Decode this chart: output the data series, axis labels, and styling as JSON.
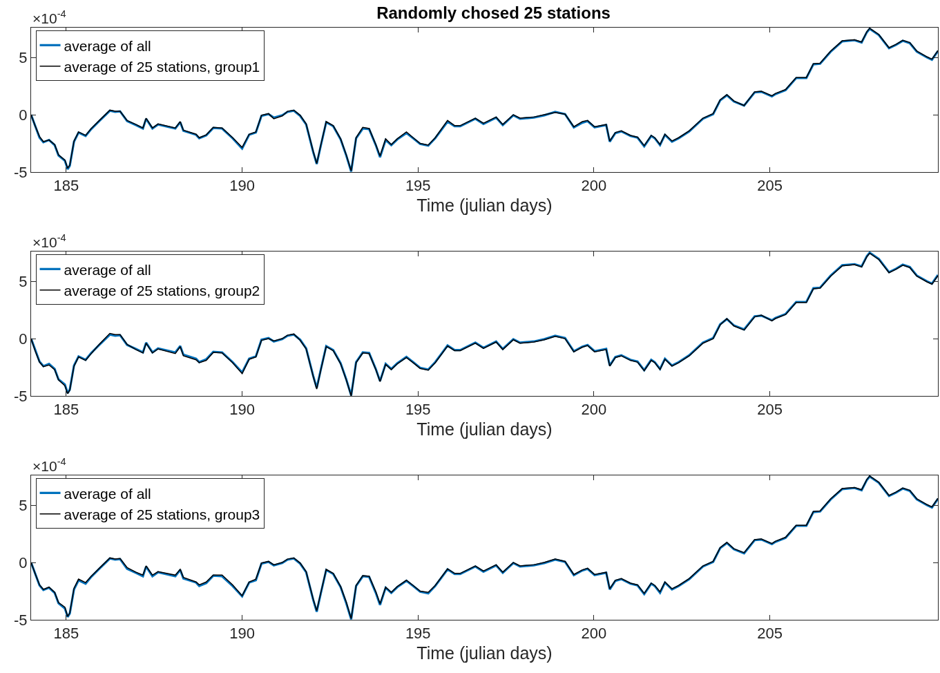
{
  "chart_data": [
    {
      "type": "line",
      "title": "Randomly chosed 25 stations",
      "xlabel": "Time (julian days)",
      "annotations": [
        "×10$^{-4}$"
      ],
      "legend": "top left",
      "grid": false,
      "x": [
        184.0,
        184.12,
        184.24,
        184.35,
        184.51,
        184.67,
        184.78,
        184.96,
        185.04,
        185.1,
        185.22,
        185.35,
        185.55,
        185.71,
        185.94,
        186.24,
        186.39,
        186.53,
        186.73,
        186.98,
        187.18,
        187.27,
        187.45,
        187.61,
        188.1,
        188.24,
        188.33,
        188.69,
        188.78,
        188.98,
        189.18,
        189.43,
        189.73,
        190.0,
        190.2,
        190.39,
        190.55,
        190.75,
        190.9,
        191.14,
        191.29,
        191.47,
        191.65,
        191.82,
        192.02,
        192.12,
        192.24,
        192.39,
        192.59,
        192.8,
        192.96,
        193.1,
        193.24,
        193.43,
        193.61,
        193.8,
        193.92,
        194.08,
        194.24,
        194.41,
        194.67,
        194.86,
        195.06,
        195.29,
        195.49,
        195.84,
        196.04,
        196.2,
        196.63,
        196.86,
        197.22,
        197.41,
        197.71,
        197.9,
        198.29,
        198.59,
        198.9,
        199.18,
        199.43,
        199.67,
        199.82,
        200.02,
        200.35,
        200.45,
        200.61,
        200.78,
        201.04,
        201.24,
        201.43,
        201.63,
        201.73,
        201.88,
        202.02,
        202.22,
        202.41,
        202.71,
        203.1,
        203.39,
        203.59,
        203.78,
        203.98,
        204.27,
        204.57,
        204.76,
        205.06,
        205.16,
        205.45,
        205.75,
        206.04,
        206.24,
        206.43,
        206.73,
        207.06,
        207.41,
        207.61,
        207.76,
        207.84,
        208.1,
        208.39,
        208.59,
        208.78,
        208.98,
        209.18,
        209.47,
        209.61,
        209.78
      ],
      "xlim": [
        184,
        209.78
      ],
      "xticks": [
        185,
        190,
        195,
        200,
        205
      ],
      "ylim": [
        -5,
        7.6
      ],
      "yticks": [
        -5,
        0,
        5
      ],
      "series": [
        {
          "name": "average of all",
          "color": "#0072bd",
          "values": [
            0,
            -1.0,
            -2.0,
            -2.4,
            -2.2,
            -2.65,
            -3.55,
            -4.0,
            -4.75,
            -4.45,
            -2.35,
            -1.55,
            -1.85,
            -1.25,
            -0.55,
            0.35,
            0.25,
            0.3,
            -0.55,
            -0.9,
            -1.2,
            -0.35,
            -1.2,
            -0.85,
            -1.2,
            -0.65,
            -1.4,
            -1.75,
            -2.05,
            -1.8,
            -1.15,
            -1.2,
            -2.05,
            -2.95,
            -1.75,
            -1.55,
            -0.1,
            0.05,
            -0.25,
            -0.05,
            0.25,
            0.35,
            -0.1,
            -0.85,
            -3.25,
            -4.3,
            -2.65,
            -0.65,
            -1.0,
            -2.15,
            -3.55,
            -4.95,
            -2.05,
            -1.2,
            -1.25,
            -2.65,
            -3.7,
            -2.2,
            -2.65,
            -2.15,
            -1.6,
            -2.05,
            -2.55,
            -2.7,
            -2.05,
            -0.6,
            -1.0,
            -1.0,
            -0.35,
            -0.8,
            -0.25,
            -0.9,
            -0.05,
            -0.35,
            -0.25,
            -0.05,
            0.25,
            0.05,
            -1.1,
            -0.7,
            -0.55,
            -1.1,
            -0.9,
            -2.35,
            -1.6,
            -1.45,
            -1.85,
            -2.0,
            -2.75,
            -1.85,
            -2.05,
            -2.65,
            -1.75,
            -2.35,
            -2.05,
            -1.45,
            -0.35,
            0.05,
            1.25,
            1.7,
            1.15,
            0.8,
            1.95,
            2.0,
            1.6,
            1.8,
            2.15,
            3.2,
            3.2,
            4.4,
            4.45,
            5.5,
            6.4,
            6.5,
            6.3,
            7.2,
            7.5,
            6.95,
            5.8,
            6.1,
            6.45,
            6.25,
            5.5,
            5.0,
            4.8,
            5.55
          ]
        },
        {
          "name": "average of 25 stations, group1",
          "color": "#000000",
          "values": [
            0,
            -1.0,
            -1.9,
            -2.35,
            -2.2,
            -2.6,
            -3.5,
            -3.95,
            -4.65,
            -4.4,
            -2.3,
            -1.5,
            -1.8,
            -1.2,
            -0.5,
            0.4,
            0.3,
            0.3,
            -0.5,
            -0.85,
            -1.15,
            -0.3,
            -1.15,
            -0.8,
            -1.15,
            -0.6,
            -1.35,
            -1.7,
            -2.0,
            -1.75,
            -1.1,
            -1.15,
            -2.0,
            -2.85,
            -1.7,
            -1.5,
            -0.05,
            0.1,
            -0.35,
            -0.1,
            0.3,
            0.4,
            -0.05,
            -0.8,
            -3.2,
            -4.25,
            -2.6,
            -0.6,
            -0.95,
            -2.1,
            -3.5,
            -4.9,
            -2.0,
            -1.1,
            -1.2,
            -2.6,
            -3.6,
            -2.1,
            -2.6,
            -2.1,
            -1.5,
            -2.0,
            -2.5,
            -2.65,
            -2.0,
            -0.5,
            -0.95,
            -0.95,
            -0.3,
            -0.75,
            -0.2,
            -0.85,
            0.0,
            -0.3,
            -0.2,
            0.0,
            0.2,
            0.05,
            -1.05,
            -0.6,
            -0.5,
            -1.05,
            -0.85,
            -2.3,
            -1.55,
            -1.4,
            -1.8,
            -1.95,
            -2.7,
            -1.8,
            -2.0,
            -2.6,
            -1.7,
            -2.3,
            -2.0,
            -1.4,
            -0.3,
            0.1,
            1.3,
            1.75,
            1.2,
            0.8,
            2.0,
            2.05,
            1.65,
            1.85,
            2.2,
            3.25,
            3.25,
            4.45,
            4.5,
            5.55,
            6.45,
            6.55,
            6.35,
            7.25,
            7.55,
            7.0,
            5.85,
            6.15,
            6.5,
            6.3,
            5.55,
            5.05,
            4.85,
            5.6
          ]
        }
      ]
    },
    {
      "type": "line",
      "xlabel": "Time (julian days)",
      "annotations": [
        "×10$^{-4}$"
      ],
      "legend": "top left",
      "grid": false,
      "x": [
        184.0,
        184.12,
        184.24,
        184.35,
        184.51,
        184.67,
        184.78,
        184.96,
        185.04,
        185.1,
        185.22,
        185.35,
        185.55,
        185.71,
        185.94,
        186.24,
        186.39,
        186.53,
        186.73,
        186.98,
        187.18,
        187.27,
        187.45,
        187.61,
        188.1,
        188.24,
        188.33,
        188.69,
        188.78,
        188.98,
        189.18,
        189.43,
        189.73,
        190.0,
        190.2,
        190.39,
        190.55,
        190.75,
        190.9,
        191.14,
        191.29,
        191.47,
        191.65,
        191.82,
        192.02,
        192.12,
        192.24,
        192.39,
        192.59,
        192.8,
        192.96,
        193.1,
        193.24,
        193.43,
        193.61,
        193.8,
        193.92,
        194.08,
        194.24,
        194.41,
        194.67,
        194.86,
        195.06,
        195.29,
        195.49,
        195.84,
        196.04,
        196.2,
        196.63,
        196.86,
        197.22,
        197.41,
        197.71,
        197.9,
        198.29,
        198.59,
        198.9,
        199.18,
        199.43,
        199.67,
        199.82,
        200.02,
        200.35,
        200.45,
        200.61,
        200.78,
        201.04,
        201.24,
        201.43,
        201.63,
        201.73,
        201.88,
        202.02,
        202.22,
        202.41,
        202.71,
        203.1,
        203.39,
        203.59,
        203.78,
        203.98,
        204.27,
        204.57,
        204.76,
        205.06,
        205.16,
        205.45,
        205.75,
        206.04,
        206.24,
        206.43,
        206.73,
        207.06,
        207.41,
        207.61,
        207.76,
        207.84,
        208.1,
        208.39,
        208.59,
        208.78,
        208.98,
        209.18,
        209.47,
        209.61,
        209.78
      ],
      "xlim": [
        184,
        209.78
      ],
      "xticks": [
        185,
        190,
        195,
        200,
        205
      ],
      "ylim": [
        -5,
        7.6
      ],
      "yticks": [
        -5,
        0,
        5
      ],
      "series": [
        {
          "name": "average of all",
          "color": "#0072bd",
          "values": [
            0,
            -1.0,
            -2.0,
            -2.4,
            -2.2,
            -2.65,
            -3.55,
            -4.0,
            -4.75,
            -4.45,
            -2.35,
            -1.55,
            -1.85,
            -1.25,
            -0.55,
            0.35,
            0.25,
            0.3,
            -0.55,
            -0.9,
            -1.2,
            -0.35,
            -1.2,
            -0.85,
            -1.2,
            -0.65,
            -1.4,
            -1.75,
            -2.05,
            -1.8,
            -1.15,
            -1.2,
            -2.05,
            -2.95,
            -1.75,
            -1.55,
            -0.1,
            0.05,
            -0.25,
            -0.05,
            0.25,
            0.35,
            -0.1,
            -0.85,
            -3.25,
            -4.3,
            -2.65,
            -0.65,
            -1.0,
            -2.15,
            -3.55,
            -4.95,
            -2.05,
            -1.2,
            -1.25,
            -2.65,
            -3.7,
            -2.2,
            -2.65,
            -2.15,
            -1.6,
            -2.05,
            -2.55,
            -2.7,
            -2.05,
            -0.6,
            -1.0,
            -1.0,
            -0.35,
            -0.8,
            -0.25,
            -0.9,
            -0.05,
            -0.35,
            -0.25,
            -0.05,
            0.25,
            0.05,
            -1.1,
            -0.7,
            -0.55,
            -1.1,
            -0.9,
            -2.35,
            -1.6,
            -1.45,
            -1.85,
            -2.0,
            -2.75,
            -1.85,
            -2.05,
            -2.65,
            -1.75,
            -2.35,
            -2.05,
            -1.45,
            -0.35,
            0.05,
            1.25,
            1.7,
            1.15,
            0.8,
            1.95,
            2.0,
            1.6,
            1.8,
            2.15,
            3.2,
            3.2,
            4.4,
            4.45,
            5.5,
            6.4,
            6.5,
            6.3,
            7.2,
            7.5,
            6.95,
            5.8,
            6.1,
            6.45,
            6.25,
            5.5,
            5.0,
            4.8,
            5.55
          ]
        },
        {
          "name": "average of 25 stations, group2",
          "color": "#000000",
          "values": [
            0,
            -1.1,
            -2.05,
            -2.45,
            -2.3,
            -2.7,
            -3.6,
            -4.1,
            -4.8,
            -4.5,
            -2.4,
            -1.6,
            -1.9,
            -1.3,
            -0.5,
            0.45,
            0.35,
            0.35,
            -0.5,
            -0.95,
            -1.25,
            -0.4,
            -1.25,
            -0.9,
            -1.3,
            -0.7,
            -1.5,
            -1.85,
            -2.1,
            -1.9,
            -1.2,
            -1.25,
            -2.1,
            -3.05,
            -1.8,
            -1.6,
            -0.15,
            0.0,
            -0.2,
            0.0,
            0.3,
            0.4,
            -0.15,
            -0.9,
            -3.3,
            -4.4,
            -2.7,
            -0.7,
            -1.05,
            -2.2,
            -3.6,
            -5.0,
            -2.1,
            -1.25,
            -1.3,
            -2.7,
            -3.75,
            -2.25,
            -2.7,
            -2.2,
            -1.65,
            -2.1,
            -2.6,
            -2.75,
            -2.1,
            -0.65,
            -1.05,
            -1.05,
            -0.4,
            -0.85,
            -0.3,
            -0.95,
            -0.1,
            -0.4,
            -0.3,
            -0.1,
            0.2,
            0.0,
            -1.15,
            -0.75,
            -0.6,
            -1.15,
            -0.95,
            -2.4,
            -1.65,
            -1.5,
            -1.9,
            -2.05,
            -2.8,
            -1.9,
            -2.1,
            -2.7,
            -1.8,
            -2.4,
            -2.1,
            -1.5,
            -0.4,
            0.0,
            1.2,
            1.75,
            1.1,
            0.75,
            1.9,
            2.05,
            1.55,
            1.75,
            2.1,
            3.15,
            3.15,
            4.35,
            4.4,
            5.45,
            6.35,
            6.45,
            6.25,
            7.15,
            7.45,
            6.9,
            5.75,
            6.05,
            6.4,
            6.2,
            5.45,
            4.95,
            4.75,
            5.5
          ]
        }
      ]
    },
    {
      "type": "line",
      "xlabel": "Time (julian days)",
      "annotations": [
        "×10$^{-4}$"
      ],
      "legend": "top left",
      "grid": false,
      "x": [
        184.0,
        184.12,
        184.24,
        184.35,
        184.51,
        184.67,
        184.78,
        184.96,
        185.04,
        185.1,
        185.22,
        185.35,
        185.55,
        185.71,
        185.94,
        186.24,
        186.39,
        186.53,
        186.73,
        186.98,
        187.18,
        187.27,
        187.45,
        187.61,
        188.1,
        188.24,
        188.33,
        188.69,
        188.78,
        188.98,
        189.18,
        189.43,
        189.73,
        190.0,
        190.2,
        190.39,
        190.55,
        190.75,
        190.9,
        191.14,
        191.29,
        191.47,
        191.65,
        191.82,
        192.02,
        192.12,
        192.24,
        192.39,
        192.59,
        192.8,
        192.96,
        193.1,
        193.24,
        193.43,
        193.61,
        193.8,
        193.92,
        194.08,
        194.24,
        194.41,
        194.67,
        194.86,
        195.06,
        195.29,
        195.49,
        195.84,
        196.04,
        196.2,
        196.63,
        196.86,
        197.22,
        197.41,
        197.71,
        197.9,
        198.29,
        198.59,
        198.9,
        199.18,
        199.43,
        199.67,
        199.82,
        200.02,
        200.35,
        200.45,
        200.61,
        200.78,
        201.04,
        201.24,
        201.43,
        201.63,
        201.73,
        201.88,
        202.02,
        202.22,
        202.41,
        202.71,
        203.1,
        203.39,
        203.59,
        203.78,
        203.98,
        204.27,
        204.57,
        204.76,
        205.06,
        205.16,
        205.45,
        205.75,
        206.04,
        206.24,
        206.43,
        206.73,
        207.06,
        207.41,
        207.61,
        207.76,
        207.84,
        208.1,
        208.39,
        208.59,
        208.78,
        208.98,
        209.18,
        209.47,
        209.61,
        209.78
      ],
      "xlim": [
        184,
        209.78
      ],
      "xticks": [
        185,
        190,
        195,
        200,
        205
      ],
      "ylim": [
        -5,
        7.6
      ],
      "yticks": [
        -5,
        0,
        5
      ],
      "series": [
        {
          "name": "average of all",
          "color": "#0072bd",
          "values": [
            0,
            -1.0,
            -2.0,
            -2.4,
            -2.2,
            -2.65,
            -3.55,
            -4.0,
            -4.75,
            -4.45,
            -2.35,
            -1.55,
            -1.85,
            -1.25,
            -0.55,
            0.35,
            0.25,
            0.3,
            -0.55,
            -0.9,
            -1.2,
            -0.35,
            -1.2,
            -0.85,
            -1.2,
            -0.65,
            -1.4,
            -1.75,
            -2.05,
            -1.8,
            -1.15,
            -1.2,
            -2.05,
            -2.95,
            -1.75,
            -1.55,
            -0.1,
            0.05,
            -0.25,
            -0.05,
            0.25,
            0.35,
            -0.1,
            -0.85,
            -3.25,
            -4.3,
            -2.65,
            -0.65,
            -1.0,
            -2.15,
            -3.55,
            -4.95,
            -2.05,
            -1.2,
            -1.25,
            -2.65,
            -3.7,
            -2.2,
            -2.65,
            -2.15,
            -1.6,
            -2.05,
            -2.55,
            -2.7,
            -2.05,
            -0.6,
            -1.0,
            -1.0,
            -0.35,
            -0.8,
            -0.25,
            -0.9,
            -0.05,
            -0.35,
            -0.25,
            -0.05,
            0.25,
            0.05,
            -1.1,
            -0.7,
            -0.55,
            -1.1,
            -0.9,
            -2.35,
            -1.6,
            -1.45,
            -1.85,
            -2.0,
            -2.75,
            -1.85,
            -2.05,
            -2.65,
            -1.75,
            -2.35,
            -2.05,
            -1.45,
            -0.35,
            0.05,
            1.25,
            1.7,
            1.15,
            0.8,
            1.95,
            2.0,
            1.6,
            1.8,
            2.15,
            3.2,
            3.2,
            4.4,
            4.45,
            5.5,
            6.4,
            6.5,
            6.3,
            7.2,
            7.5,
            6.95,
            5.8,
            6.1,
            6.45,
            6.25,
            5.5,
            5.0,
            4.8,
            5.55
          ]
        },
        {
          "name": "average of 25 stations, group3",
          "color": "#000000",
          "values": [
            0,
            -1.0,
            -1.95,
            -2.35,
            -2.15,
            -2.6,
            -3.5,
            -3.9,
            -4.7,
            -4.4,
            -2.25,
            -1.45,
            -1.75,
            -1.2,
            -0.5,
            0.4,
            0.3,
            0.35,
            -0.45,
            -0.85,
            -1.1,
            -0.3,
            -1.1,
            -0.8,
            -1.1,
            -0.6,
            -1.3,
            -1.7,
            -1.95,
            -1.7,
            -1.1,
            -1.1,
            -1.95,
            -2.9,
            -1.7,
            -1.45,
            -0.05,
            0.1,
            -0.2,
            0.0,
            0.3,
            0.4,
            -0.05,
            -0.8,
            -3.2,
            -4.2,
            -2.6,
            -0.6,
            -0.95,
            -2.1,
            -3.45,
            -4.9,
            -2.0,
            -1.15,
            -1.2,
            -2.55,
            -3.6,
            -2.15,
            -2.6,
            -2.1,
            -1.55,
            -2.0,
            -2.5,
            -2.6,
            -2.0,
            -0.55,
            -0.95,
            -0.95,
            -0.3,
            -0.75,
            -0.2,
            -0.85,
            0.0,
            -0.3,
            -0.2,
            0.0,
            0.3,
            0.1,
            -1.05,
            -0.65,
            -0.5,
            -1.05,
            -0.85,
            -2.3,
            -1.55,
            -1.4,
            -1.8,
            -1.95,
            -2.7,
            -1.8,
            -2.0,
            -2.55,
            -1.7,
            -2.3,
            -2.0,
            -1.4,
            -0.3,
            0.1,
            1.3,
            1.75,
            1.2,
            0.85,
            2.0,
            2.05,
            1.65,
            1.85,
            2.2,
            3.25,
            3.25,
            4.45,
            4.5,
            5.55,
            6.45,
            6.55,
            6.35,
            7.25,
            7.55,
            7.0,
            5.85,
            6.15,
            6.5,
            6.3,
            5.55,
            5.05,
            4.85,
            5.6
          ]
        }
      ]
    }
  ]
}
